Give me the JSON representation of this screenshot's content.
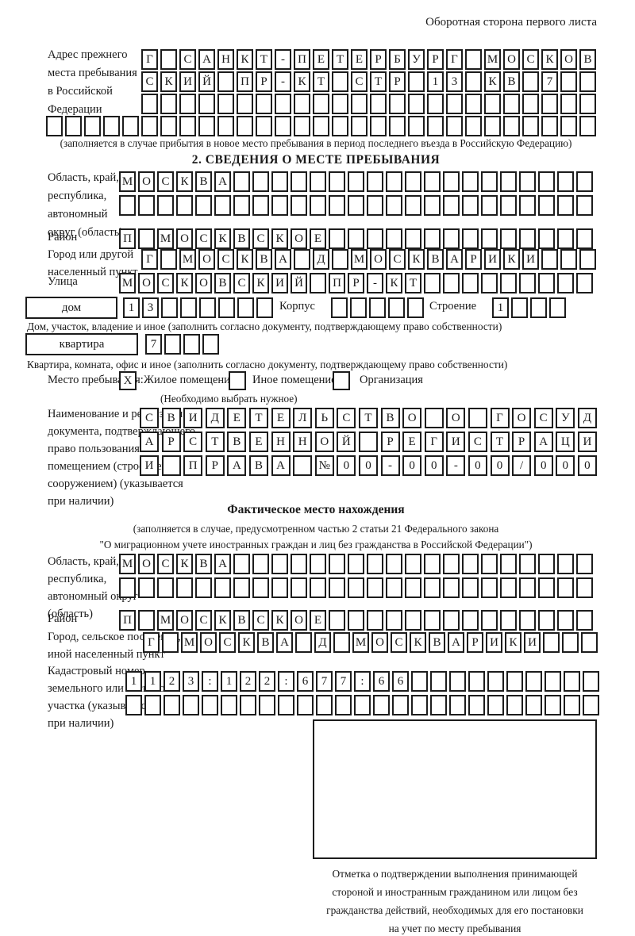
{
  "page": {
    "header_note": "Оборотная сторона первого листа"
  },
  "prev_address": {
    "label_lines": [
      "Адрес прежнего",
      "места пребывания",
      "в Российской",
      "Федерации"
    ],
    "row1": {
      "value": "Г САНКТ-ПЕТЕРБУРГ МОСКОВ",
      "count": 24
    },
    "row2": {
      "value": "СКИЙ ПР-КТ СТР 13 КВ 7",
      "count": 24
    },
    "row3": {
      "value": "",
      "count": 24
    },
    "row4": {
      "value": "",
      "count": 29
    },
    "note": "(заполняется в случае прибытия в новое место пребывания в период последнего въезда в Российскую Федерацию)"
  },
  "section2": {
    "title": "2. СВЕДЕНИЯ О МЕСТЕ ПРЕБЫВАНИЯ",
    "region": {
      "label_lines": [
        "Область, край,",
        "республика,",
        "автономный",
        "округ (область)"
      ],
      "row1": {
        "value": "МОСКВА",
        "count": 25
      },
      "row2": {
        "value": "",
        "count": 25
      }
    },
    "district": {
      "label": "Район",
      "row": {
        "value": "П МОСКВСКОЕ",
        "count": 25
      }
    },
    "city": {
      "label_lines": [
        "Город или другой",
        "населенный пункт"
      ],
      "row": {
        "value": "Г МОСКВА Д МОСКВАРИКИ",
        "count": 24
      }
    },
    "street": {
      "label": "Улица",
      "row": {
        "value": "МОСКОВСКИЙ ПР-КТ",
        "count": 25
      }
    },
    "house_line": {
      "house_label": "дом",
      "house": {
        "value": "13",
        "count": 8
      },
      "korpus_label": "Корпус",
      "korpus": {
        "value": "",
        "count": 5
      },
      "stroenie_label": "Строение",
      "stroenie": {
        "value": "1",
        "count": 4
      }
    },
    "house_note": "Дом, участок, владение и иное (заполнить согласно документу, подтверждающему право собственности)",
    "apartment_line": {
      "apartment_label": "квартира",
      "apartment": {
        "value": "7",
        "count": 4
      }
    },
    "apartment_note": "Квартира, комната, офис и иное (заполнить согласно документу, подтверждающему право собственности)",
    "stay_type": {
      "label": "Место пребывания:",
      "options": [
        {
          "mark": "X",
          "label": "Жилое помещение"
        },
        {
          "mark": "",
          "label": "Иное помещение"
        },
        {
          "mark": "",
          "label": "Организация"
        }
      ],
      "note": "(Необходимо выбрать нужное)"
    },
    "document": {
      "label_lines": [
        "Наименование и реквизиты",
        "документа, подтверждающего",
        "право пользования",
        "помещением (строением,",
        "сооружением) (указывается",
        "при наличии)"
      ],
      "row1": {
        "value": "СВИДЕТЕЛЬСТВО О ГОСУД",
        "count": 21
      },
      "row2": {
        "value": "АРСТВЕННОЙ РЕГИСТРАЦИ",
        "count": 21
      },
      "row3": {
        "value": "И ПРАВА №00-00-00/000",
        "count": 21
      }
    }
  },
  "actual_location": {
    "title": "Фактическое место нахождения",
    "legal_line1": "(заполняется в случае, предусмотренном частью 2 статьи 21 Федерального закона",
    "legal_line2": "\"О миграционном учете иностранных граждан и лиц без гражданства в Российской Федерации\")",
    "region": {
      "label_lines": [
        "Область, край,",
        "республика,",
        "автономный округ",
        "(область)"
      ],
      "row1": {
        "value": "МОСКВА",
        "count": 25
      },
      "row2": {
        "value": "",
        "count": 25
      }
    },
    "district": {
      "label": "Район",
      "row": {
        "value": "П МОСКВСКОЕ",
        "count": 25
      }
    },
    "city": {
      "label_lines": [
        "Город, сельское поселение,",
        "иной населенный пункт"
      ],
      "row": {
        "value": "Г МОСКВА Д МОСКВАРИКИ",
        "count": 24
      }
    },
    "cadastre": {
      "label_lines": [
        "Кадастровый номер",
        "земельного или лесного",
        "участка (указывается",
        "при наличии)"
      ],
      "row1": {
        "value": "1123:122:677:66",
        "count": 25
      },
      "row2": {
        "value": "",
        "count": 25
      }
    },
    "confirmation_caption_lines": [
      "Отметка о подтверждении выполнения принимающей",
      "стороной и иностранным гражданином или лицом без",
      "гражданства действий, необходимых для его постановки",
      "на учет по месту пребывания"
    ]
  }
}
